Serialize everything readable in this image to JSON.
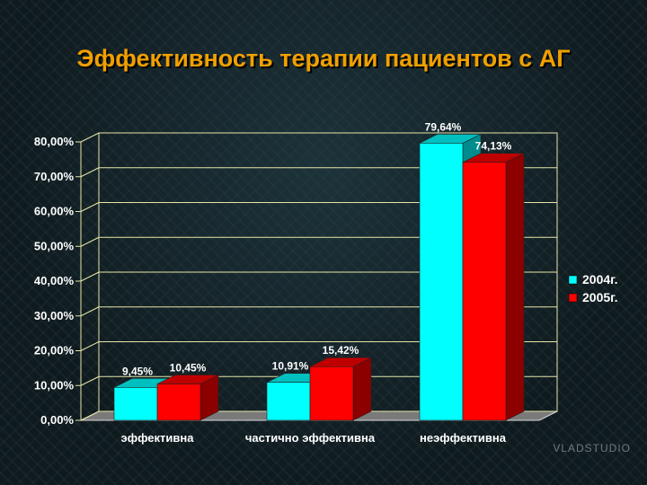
{
  "title": "Эффективность терапии пациентов с АГ",
  "watermark": "VLADSTUDIO",
  "colors": {
    "series_2004": "#00ffff",
    "series_2005": "#ff0000",
    "grid": "#e6e6a8"
  },
  "chart_data": {
    "type": "bar",
    "title": "Эффективность терапии пациентов с АГ",
    "categories": [
      "эффективна",
      "частично эффективна",
      "неэффективна"
    ],
    "series": [
      {
        "name": "2004г.",
        "values": [
          9.45,
          10.91,
          79.64
        ],
        "labels": [
          "9,45%",
          "10,91%",
          "79,64%"
        ]
      },
      {
        "name": "2005г.",
        "values": [
          10.45,
          15.42,
          74.13
        ],
        "labels": [
          "10,45%",
          "15,42%",
          "74,13%"
        ]
      }
    ],
    "yticks": [
      "0,00%",
      "10,00%",
      "20,00%",
      "30,00%",
      "40,00%",
      "50,00%",
      "60,00%",
      "70,00%",
      "80,00%"
    ],
    "ylim": [
      0,
      80
    ],
    "grid": true,
    "legend_position": "right",
    "style": "3d"
  }
}
